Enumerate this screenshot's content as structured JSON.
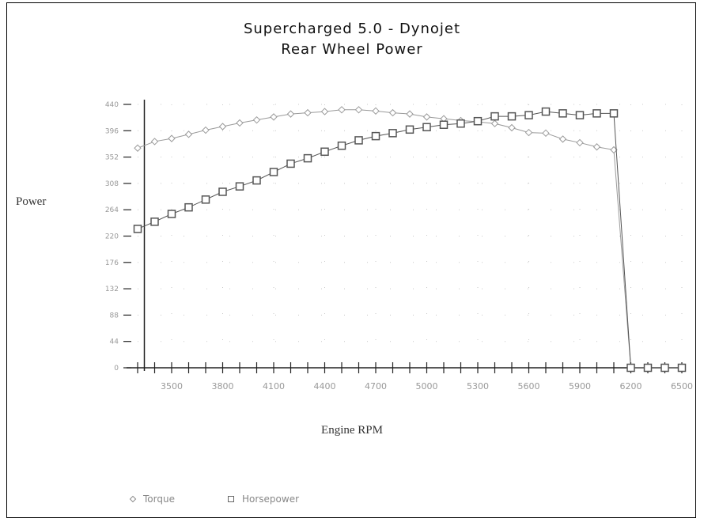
{
  "chart_data": {
    "type": "line",
    "title": "Supercharged 5.0 - Dynojet",
    "subtitle": "Rear Wheel Power",
    "xlabel": "Engine RPM",
    "ylabel": "Power",
    "x_ticks": [
      3500,
      3800,
      4100,
      4400,
      4700,
      5000,
      5300,
      5600,
      5900,
      6200,
      6500
    ],
    "y_ticks": [
      0,
      44,
      88,
      132,
      176,
      220,
      264,
      308,
      352,
      396,
      440
    ],
    "xlim": [
      3300,
      6500
    ],
    "ylim": [
      0,
      440
    ],
    "grid": true,
    "legend_position": "bottom-left",
    "x": [
      3300,
      3400,
      3500,
      3600,
      3700,
      3800,
      3900,
      4000,
      4100,
      4200,
      4300,
      4400,
      4500,
      4600,
      4700,
      4800,
      4900,
      5000,
      5100,
      5200,
      5300,
      5400,
      5500,
      5600,
      5700,
      5800,
      5900,
      6000,
      6100,
      6200,
      6300,
      6400,
      6500
    ],
    "series": [
      {
        "name": "Torque",
        "marker": "diamond",
        "values": [
          367,
          378,
          383,
          390,
          397,
          403,
          409,
          414,
          419,
          424,
          426,
          428,
          431,
          431,
          429,
          426,
          424,
          419,
          416,
          413,
          411,
          408,
          401,
          393,
          392,
          382,
          376,
          369,
          364,
          0,
          0,
          0,
          0
        ]
      },
      {
        "name": "Horsepower",
        "marker": "square",
        "values": [
          232,
          244,
          257,
          268,
          281,
          294,
          303,
          313,
          327,
          341,
          350,
          361,
          371,
          380,
          387,
          392,
          398,
          402,
          406,
          408,
          412,
          420,
          420,
          422,
          428,
          425,
          422,
          425,
          425,
          0,
          0,
          0,
          0
        ]
      }
    ]
  },
  "colors": {
    "torque": "#9a9a9a",
    "horsepower": "#555555",
    "axis": "#222222",
    "grid": "#c8c8c8",
    "tick_label": "#999999"
  }
}
